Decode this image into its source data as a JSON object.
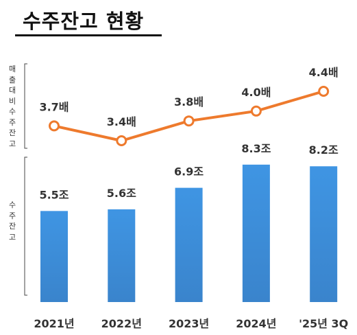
{
  "title": "수주잔고  현황",
  "chart_data": {
    "type": "bar",
    "categories": [
      "2021년",
      "2022년",
      "2023년",
      "2024년",
      "'25년 3Q"
    ],
    "series": [
      {
        "name": "수주잔고",
        "type": "bar",
        "values": [
          5.5,
          5.6,
          6.9,
          8.3,
          8.2
        ],
        "value_labels": [
          "5.5조",
          "5.6조",
          "6.9조",
          "8.3조",
          "8.2조"
        ],
        "color": "#3a8fde"
      },
      {
        "name": "매출대비수주잔고",
        "type": "line",
        "values": [
          3.7,
          3.4,
          3.8,
          4.0,
          4.4
        ],
        "value_labels": [
          "3.7배",
          "3.4배",
          "3.8배",
          "4.0배",
          "4.4배"
        ],
        "color": "#ee7a2d"
      }
    ],
    "bar_ylim": [
      0,
      8.5
    ],
    "line_ylim": [
      3.4,
      4.4
    ],
    "grid": false,
    "legend": "none"
  },
  "left_labels": {
    "upper": "매출대비수주잔고",
    "lower": "수주잔고"
  }
}
